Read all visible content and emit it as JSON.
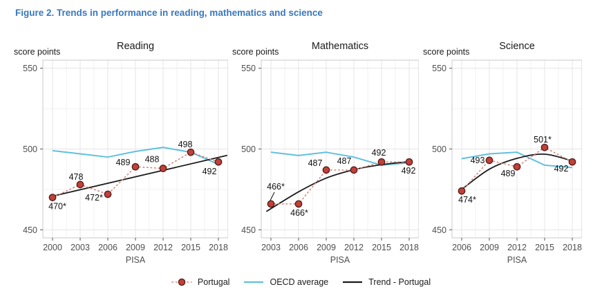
{
  "figure": {
    "title": "Figure 2. Trends in performance in reading, mathematics and science"
  },
  "colors": {
    "title_blue": "#3878be",
    "oecd_line": "#5fc0de",
    "portugal_fill": "#bf4138",
    "portugal_stroke": "#571818",
    "portugal_dotted": "#d4857c",
    "trend_line": "#1a1a1a",
    "grid_major": "#e4e4e4",
    "grid_minor": "#f2f2f2",
    "panel_border": "#c9c9c9",
    "tick_mark": "#555555",
    "tick_text": "#4d4d4d",
    "data_label": "#111111"
  },
  "legend": {
    "items": [
      {
        "name": "portugal",
        "label": "Portugal"
      },
      {
        "name": "oecd",
        "label": "OECD average"
      },
      {
        "name": "trend",
        "label": "Trend - Portugal"
      }
    ]
  },
  "chart_data": [
    {
      "type": "line",
      "title": "Reading",
      "ylabel": "score points",
      "xlabel": "PISA",
      "ylim": [
        445,
        555
      ],
      "yticks": [
        450,
        500,
        550
      ],
      "grid": true,
      "legend_position": "bottom",
      "categories": [
        "2000",
        "2003",
        "2006",
        "2009",
        "2012",
        "2015",
        "2018"
      ],
      "series": [
        {
          "name": "Portugal",
          "style": "points-dotted",
          "values": [
            470,
            478,
            472,
            489,
            488,
            498,
            492
          ],
          "point_labels": [
            {
              "text": "470*",
              "dx": 7,
              "dy": 13
            },
            {
              "text": "478",
              "dx": -6,
              "dy": -11
            },
            {
              "text": "472*",
              "dx": -20,
              "dy": 5
            },
            {
              "text": "489",
              "dx": -18,
              "dy": -6
            },
            {
              "text": "488",
              "dx": -16,
              "dy": -13
            },
            {
              "text": "498",
              "dx": -8,
              "dy": -11
            },
            {
              "text": "492",
              "dx": -13,
              "dy": 14
            }
          ]
        },
        {
          "name": "OECD average",
          "style": "line",
          "values": [
            499,
            497,
            495,
            498.5,
            501,
            498,
            490.5
          ]
        },
        {
          "name": "Trend - Portugal",
          "style": "smooth",
          "points": [
            [
              0,
              470.8
            ],
            [
              6.3,
              496
            ]
          ]
        }
      ]
    },
    {
      "type": "line",
      "title": "Mathematics",
      "ylabel": "score points",
      "xlabel": "PISA",
      "ylim": [
        445,
        555
      ],
      "yticks": [
        450,
        500,
        550
      ],
      "grid": true,
      "legend_position": "bottom",
      "categories": [
        "2003",
        "2006",
        "2009",
        "2012",
        "2015",
        "2018"
      ],
      "series": [
        {
          "name": "Portugal",
          "style": "points-dotted",
          "values": [
            466,
            466,
            487,
            487,
            492,
            492
          ],
          "point_labels": [
            {
              "text": "466*",
              "dx": 7,
              "dy": -25,
              "leader": true
            },
            {
              "text": "466*",
              "dx": 1,
              "dy": 13
            },
            {
              "text": "487",
              "dx": -16,
              "dy": -10
            },
            {
              "text": "487",
              "dx": -14,
              "dy": -13
            },
            {
              "text": "492",
              "dx": -4,
              "dy": -13
            },
            {
              "text": "492",
              "dx": -1,
              "dy": 13
            }
          ]
        },
        {
          "name": "OECD average",
          "style": "line",
          "values": [
            498,
            496,
            498,
            495,
            490,
            491.5
          ]
        },
        {
          "name": "Trend - Portugal",
          "style": "smooth",
          "points": [
            [
              -0.15,
              461.5
            ],
            [
              1,
              473.5
            ],
            [
              2,
              482
            ],
            [
              3,
              487.2
            ],
            [
              4,
              490.3
            ],
            [
              5,
              492.2
            ]
          ]
        }
      ]
    },
    {
      "type": "line",
      "title": "Science",
      "ylabel": "score points",
      "xlabel": "PISA",
      "ylim": [
        445,
        555
      ],
      "yticks": [
        450,
        500,
        550
      ],
      "grid": true,
      "legend_position": "bottom",
      "categories": [
        "2006",
        "2009",
        "2012",
        "2015",
        "2018"
      ],
      "series": [
        {
          "name": "Portugal",
          "style": "points-dotted",
          "values": [
            474,
            493,
            489,
            501,
            492
          ],
          "point_labels": [
            {
              "text": "474*",
              "dx": 8,
              "dy": 13
            },
            {
              "text": "493",
              "dx": -17,
              "dy": 0
            },
            {
              "text": "489",
              "dx": -13,
              "dy": 10
            },
            {
              "text": "501*",
              "dx": -3,
              "dy": -11
            },
            {
              "text": "492",
              "dx": -16,
              "dy": 10
            }
          ]
        },
        {
          "name": "OECD average",
          "style": "line",
          "values": [
            494,
            497,
            498,
            490,
            488.5
          ]
        },
        {
          "name": "Trend - Portugal",
          "style": "smooth",
          "points": [
            [
              0,
              475
            ],
            [
              1,
              487.5
            ],
            [
              2,
              494.2
            ],
            [
              3,
              496.8
            ],
            [
              4,
              492.6
            ]
          ]
        }
      ]
    }
  ]
}
